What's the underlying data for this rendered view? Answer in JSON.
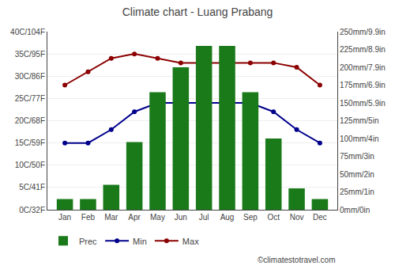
{
  "chart_data": {
    "type": "bar",
    "title": "Climate chart - Luang Prabang",
    "categories": [
      "Jan",
      "Feb",
      "Mar",
      "Apr",
      "May",
      "Jun",
      "Jul",
      "Aug",
      "Sep",
      "Oct",
      "Nov",
      "Dec"
    ],
    "series": [
      {
        "name": "Prec",
        "type": "bar",
        "axis": "y2",
        "color": "#1a7a1a",
        "values": [
          15,
          15,
          35,
          95,
          165,
          200,
          230,
          230,
          165,
          100,
          30,
          15
        ]
      },
      {
        "name": "Min",
        "type": "line",
        "marker": "circle",
        "color": "#00008B",
        "values": [
          15,
          15,
          18,
          22,
          24,
          24,
          24,
          24,
          24,
          22,
          18,
          15
        ]
      },
      {
        "name": "Max",
        "type": "line",
        "marker": "circle",
        "color": "#8B0000",
        "values": [
          28,
          31,
          34,
          35,
          34,
          33,
          33,
          33,
          33,
          33,
          32,
          28
        ]
      }
    ],
    "ylim": [
      0,
      40
    ],
    "yticks": [
      {
        "value": 0,
        "label": "0C/32F"
      },
      {
        "value": 5,
        "label": "5C/41F"
      },
      {
        "value": 10,
        "label": "10C/50F"
      },
      {
        "value": 15,
        "label": "15C/59F"
      },
      {
        "value": 20,
        "label": "20C/68F"
      },
      {
        "value": 25,
        "label": "25C/77F"
      },
      {
        "value": 30,
        "label": "30C/86F"
      },
      {
        "value": 35,
        "label": "35C/95F"
      },
      {
        "value": 40,
        "label": "40C/104F"
      }
    ],
    "y2lim": [
      0,
      250
    ],
    "y2ticks": [
      {
        "value": 0,
        "label": "0mm/0in"
      },
      {
        "value": 25,
        "label": "25mm/1in"
      },
      {
        "value": 50,
        "label": "50mm/2in"
      },
      {
        "value": 75,
        "label": "75mm/3in"
      },
      {
        "value": 100,
        "label": "100mm/4in"
      },
      {
        "value": 125,
        "label": "125mm/5in"
      },
      {
        "value": 150,
        "label": "150mm/5.9in"
      },
      {
        "value": 175,
        "label": "175mm/6.9in"
      },
      {
        "value": 200,
        "label": "200mm/7.9in"
      },
      {
        "value": 225,
        "label": "225mm/8.9in"
      },
      {
        "value": 250,
        "label": "250mm/9.9in"
      }
    ],
    "grid": true,
    "legend": "lower left",
    "annotations": [
      "©climatestotravel.com"
    ]
  }
}
